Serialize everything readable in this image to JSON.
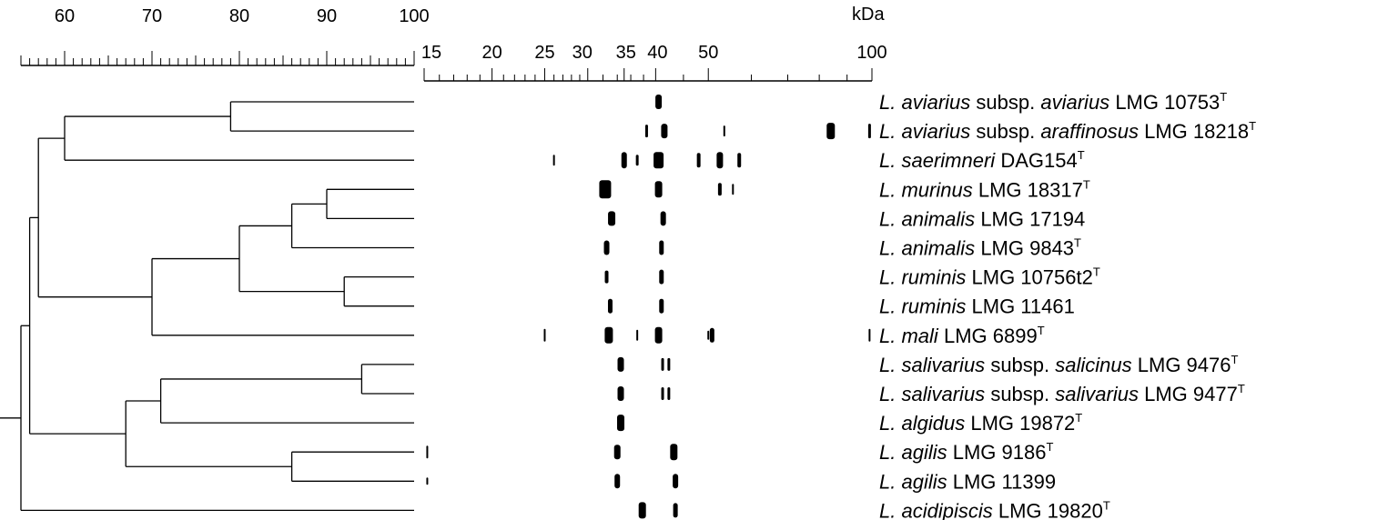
{
  "similarity_axis": {
    "ticks": [
      "60",
      "70",
      "80",
      "90",
      "100"
    ],
    "min": 55,
    "max": 100
  },
  "mass_axis": {
    "unit": "kDa",
    "scale": "log",
    "min": 15,
    "max": 100,
    "ticks": [
      "15",
      "20",
      "25",
      "30",
      "35",
      "40",
      "50",
      "100"
    ]
  },
  "strains": [
    {
      "genus": "L.",
      "species": "aviarius",
      "subsp_word": "subsp.",
      "subspecies": "aviarius",
      "strain": "LMG 10753",
      "type": "T"
    },
    {
      "genus": "L.",
      "species": "aviarius",
      "subsp_word": "subsp.",
      "subspecies": "araffinosus",
      "strain": "LMG 18218",
      "type": "T"
    },
    {
      "genus": "L.",
      "species": "saerimneri",
      "subsp_word": "",
      "subspecies": "",
      "strain": "DAG154",
      "type": "T"
    },
    {
      "genus": "L.",
      "species": "murinus",
      "subsp_word": "",
      "subspecies": "",
      "strain": "LMG 18317",
      "type": "T"
    },
    {
      "genus": "L.",
      "species": "animalis",
      "subsp_word": "",
      "subspecies": "",
      "strain": "LMG 17194",
      "type": ""
    },
    {
      "genus": "L.",
      "species": "animalis",
      "subsp_word": "",
      "subspecies": "",
      "strain": "LMG 9843",
      "type": "T"
    },
    {
      "genus": "L.",
      "species": "ruminis",
      "subsp_word": "",
      "subspecies": "",
      "strain": "LMG 10756t2",
      "type": "T"
    },
    {
      "genus": "L.",
      "species": "ruminis",
      "subsp_word": "",
      "subspecies": "",
      "strain": "LMG 11461",
      "type": ""
    },
    {
      "genus": "L.",
      "species": "mali",
      "subsp_word": "",
      "subspecies": "",
      "strain": "LMG 6899",
      "type": "T"
    },
    {
      "genus": "L.",
      "species": "salivarius",
      "subsp_word": "subsp.",
      "subspecies": "salicinus",
      "strain": "LMG 9476",
      "type": "T"
    },
    {
      "genus": "L.",
      "species": "salivarius",
      "subsp_word": "subsp.",
      "subspecies": "salivarius",
      "strain": "LMG 9477",
      "type": "T"
    },
    {
      "genus": "L.",
      "species": "algidus",
      "subsp_word": "",
      "subspecies": "",
      "strain": "LMG 19872",
      "type": "T"
    },
    {
      "genus": "L.",
      "species": "agilis",
      "subsp_word": "",
      "subspecies": "",
      "strain": "LMG 9186",
      "type": "T"
    },
    {
      "genus": "L.",
      "species": "agilis",
      "subsp_word": "",
      "subspecies": "",
      "strain": "LMG 11399",
      "type": ""
    },
    {
      "genus": "L.",
      "species": "acidipiscis",
      "subsp_word": "",
      "subspecies": "",
      "strain": "LMG 19820",
      "type": "T"
    }
  ],
  "dendrogram": {
    "nodes": [
      {
        "id": "n1",
        "children": [
          0,
          1
        ],
        "similarity": 79
      },
      {
        "id": "n2",
        "children": [
          "n1",
          2
        ],
        "similarity": 60
      },
      {
        "id": "n3",
        "children": [
          3,
          4
        ],
        "similarity": 90
      },
      {
        "id": "n4",
        "children": [
          "n3",
          5
        ],
        "similarity": 86
      },
      {
        "id": "n5",
        "children": [
          6,
          7
        ],
        "similarity": 92
      },
      {
        "id": "n6",
        "children": [
          "n4",
          "n5"
        ],
        "similarity": 80
      },
      {
        "id": "n7",
        "children": [
          "n6",
          8
        ],
        "similarity": 70
      },
      {
        "id": "n8",
        "children": [
          "n2",
          "n7"
        ],
        "similarity": 57
      },
      {
        "id": "n9",
        "children": [
          9,
          10
        ],
        "similarity": 94
      },
      {
        "id": "n10",
        "children": [
          "n9",
          11
        ],
        "similarity": 71
      },
      {
        "id": "n11",
        "children": [
          12,
          13
        ],
        "similarity": 86
      },
      {
        "id": "n12",
        "children": [
          "n10",
          "n11"
        ],
        "similarity": 67
      },
      {
        "id": "n13",
        "children": [
          "n8",
          "n12"
        ],
        "similarity": 56
      },
      {
        "id": "root",
        "children": [
          "n13",
          14
        ],
        "similarity": 55
      }
    ]
  },
  "bands": [
    [
      {
        "kda": 40.5,
        "w": 7,
        "h": 16
      }
    ],
    [
      {
        "kda": 38.5,
        "w": 3,
        "h": 14
      },
      {
        "kda": 41.5,
        "w": 7,
        "h": 16
      },
      {
        "kda": 53.5,
        "w": 2,
        "h": 12
      },
      {
        "kda": 84,
        "w": 9,
        "h": 18
      },
      {
        "kda": 99,
        "w": 3,
        "h": 16
      }
    ],
    [
      {
        "kda": 26,
        "w": 2,
        "h": 12
      },
      {
        "kda": 35,
        "w": 6,
        "h": 18
      },
      {
        "kda": 37,
        "w": 3,
        "h": 12
      },
      {
        "kda": 40.5,
        "w": 11,
        "h": 18
      },
      {
        "kda": 48,
        "w": 4,
        "h": 16
      },
      {
        "kda": 52.5,
        "w": 7,
        "h": 18
      },
      {
        "kda": 57,
        "w": 4,
        "h": 16
      }
    ],
    [
      {
        "kda": 32.3,
        "w": 13,
        "h": 20
      },
      {
        "kda": 40.5,
        "w": 8,
        "h": 18
      },
      {
        "kda": 52.5,
        "w": 4,
        "h": 14
      },
      {
        "kda": 55.5,
        "w": 2,
        "h": 12
      }
    ],
    [
      {
        "kda": 33.2,
        "w": 8,
        "h": 16
      },
      {
        "kda": 41.3,
        "w": 6,
        "h": 16
      }
    ],
    [
      {
        "kda": 32.5,
        "w": 6,
        "h": 16
      },
      {
        "kda": 41,
        "w": 5,
        "h": 16
      }
    ],
    [
      {
        "kda": 32.5,
        "w": 4,
        "h": 14
      },
      {
        "kda": 41,
        "w": 5,
        "h": 16
      }
    ],
    [
      {
        "kda": 33,
        "w": 5,
        "h": 16
      },
      {
        "kda": 41,
        "w": 5,
        "h": 16
      }
    ],
    [
      {
        "kda": 25,
        "w": 2,
        "h": 14
      },
      {
        "kda": 32.8,
        "w": 9,
        "h": 18
      },
      {
        "kda": 37,
        "w": 2,
        "h": 12
      },
      {
        "kda": 40.5,
        "w": 8,
        "h": 18
      },
      {
        "kda": 50,
        "w": 2,
        "h": 10
      },
      {
        "kda": 50.8,
        "w": 5,
        "h": 16
      },
      {
        "kda": 99,
        "w": 2,
        "h": 14
      }
    ],
    [
      {
        "kda": 34.5,
        "w": 7,
        "h": 16
      },
      {
        "kda": 41.2,
        "w": 3,
        "h": 14
      },
      {
        "kda": 42.3,
        "w": 3,
        "h": 14
      }
    ],
    [
      {
        "kda": 34.5,
        "w": 7,
        "h": 16
      },
      {
        "kda": 41.2,
        "w": 3,
        "h": 14
      },
      {
        "kda": 42.3,
        "w": 3,
        "h": 14
      }
    ],
    [
      {
        "kda": 34.5,
        "w": 8,
        "h": 18
      }
    ],
    [
      {
        "kda": 15.2,
        "w": 2,
        "h": 14
      },
      {
        "kda": 34,
        "w": 7,
        "h": 16
      },
      {
        "kda": 43.2,
        "w": 8,
        "h": 18
      }
    ],
    [
      {
        "kda": 15.2,
        "w": 2,
        "h": 8
      },
      {
        "kda": 34,
        "w": 6,
        "h": 16
      },
      {
        "kda": 43.5,
        "w": 6,
        "h": 16
      }
    ],
    [
      {
        "kda": 37.8,
        "w": 8,
        "h": 18
      },
      {
        "kda": 43.5,
        "w": 5,
        "h": 16
      }
    ]
  ]
}
